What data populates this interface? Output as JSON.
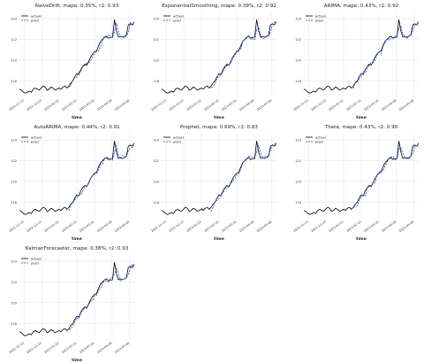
{
  "chart_data": [
    {
      "type": "line",
      "title": "NaiveDrift, mape: 0.35%, r2: 0.93",
      "xlabel": "time",
      "ylim": [
        116.4,
        124.6
      ],
      "yticks": [
        118,
        120,
        122,
        124
      ],
      "xticks": [
        "2022-11-13",
        "2022-12-23",
        "2023-01-22",
        "2023-02-15",
        "2023-03-16",
        "2023-04-09",
        "2023-05-08"
      ],
      "legend": [
        "actual",
        "pred"
      ],
      "pred_start": 25,
      "pred_seed": 1
    },
    {
      "type": "line",
      "title": "ExponentialSmoothing, mape: 0.39%, r2: 0.92",
      "xlabel": "time",
      "ylim": [
        116.4,
        124.6
      ],
      "yticks": [
        118,
        120,
        122,
        124
      ],
      "xticks": [
        "2022-11-13",
        "2022-12-23",
        "2023-01-22",
        "2023-02-15",
        "2023-03-16",
        "2023-04-09",
        "2023-05-08"
      ],
      "legend": [
        "actual",
        "pred"
      ],
      "pred_start": 25,
      "pred_seed": 2
    },
    {
      "type": "line",
      "title": "ARIMA, mape: 0.43%, r2: 0.92",
      "xlabel": "time",
      "ylim": [
        116.4,
        124.6
      ],
      "yticks": [
        118,
        120,
        122,
        124
      ],
      "xticks": [
        "2022-11-13",
        "2022-12-23",
        "2023-01-22",
        "2023-02-15",
        "2023-03-16",
        "2023-04-09",
        "2023-05-08"
      ],
      "legend": [
        "actual",
        "pred"
      ],
      "pred_start": 25,
      "pred_seed": 3
    },
    {
      "type": "line",
      "title": "AutoARIMA, mape: 0.44%, r2: 0.91",
      "xlabel": "time",
      "ylim": [
        116.4,
        124.6
      ],
      "yticks": [
        118,
        120,
        122,
        124
      ],
      "xticks": [
        "2022-11-13",
        "2022-12-23",
        "2023-01-22",
        "2023-02-15",
        "2023-03-16",
        "2023-04-09",
        "2023-05-08"
      ],
      "legend": [
        "actual",
        "pred"
      ],
      "pred_start": 25,
      "pred_seed": 4
    },
    {
      "type": "line",
      "title": "Prophet, mape: 0.69%, r2: 0.83",
      "xlabel": "time",
      "ylim": [
        116.4,
        124.6
      ],
      "yticks": [
        118,
        120,
        122,
        124
      ],
      "xticks": [
        "2022-11-13",
        "2022-12-23",
        "2023-01-22",
        "2023-02-15",
        "2023-03-16",
        "2023-04-09",
        "2023-05-08"
      ],
      "legend": [
        "actual",
        "pred"
      ],
      "pred_start": 20,
      "pred_seed": 5
    },
    {
      "type": "line",
      "title": "Theta, mape: 0.43%, r2: 0.90",
      "xlabel": "time",
      "ylim": [
        116.4,
        124.6
      ],
      "yticks": [
        118,
        120,
        122,
        124
      ],
      "xticks": [
        "2022-11-13",
        "2022-12-23",
        "2023-01-22",
        "2023-02-15",
        "2023-03-16",
        "2023-04-09",
        "2023-05-08"
      ],
      "legend": [
        "actual",
        "pred"
      ],
      "pred_start": 25,
      "pred_seed": 6
    },
    {
      "type": "line",
      "title": "KalmanForecaster, mape: 0.38%, r2: 0.93",
      "xlabel": "time",
      "ylim": [
        116.4,
        124.6
      ],
      "yticks": [
        118,
        120,
        122,
        124
      ],
      "xticks": [
        "2022-11-13",
        "2022-12-23",
        "2023-01-22",
        "2023-02-15",
        "2023-03-16",
        "2023-04-09",
        "2023-05-08"
      ],
      "legend": [
        "actual",
        "pred"
      ],
      "pred_start": 25,
      "pred_seed": 7
    }
  ],
  "series": {
    "actual": [
      117.2,
      117.1,
      116.9,
      116.8,
      116.9,
      117.0,
      116.9,
      117.2,
      117.3,
      117.2,
      117.1,
      117.3,
      117.5,
      117.4,
      117.1,
      117.2,
      117.4,
      117.3,
      117.1,
      117.2,
      117.3,
      117.2,
      117.4,
      117.5,
      117.3,
      117.5,
      117.8,
      118.0,
      118.4,
      118.7,
      118.6,
      119.1,
      119.4,
      119.6,
      119.5,
      119.9,
      120.3,
      120.6,
      120.8,
      120.9,
      121.4,
      121.8,
      122.0,
      122.2,
      122.3,
      122.1,
      122.2,
      122.2,
      123.9,
      122.8,
      122.2,
      122.3,
      122.2,
      122.3,
      122.4,
      123.4,
      123.5,
      123.4,
      123.7
    ],
    "colors": {
      "actual": "#000000",
      "pred": "#1f4fd1"
    }
  }
}
